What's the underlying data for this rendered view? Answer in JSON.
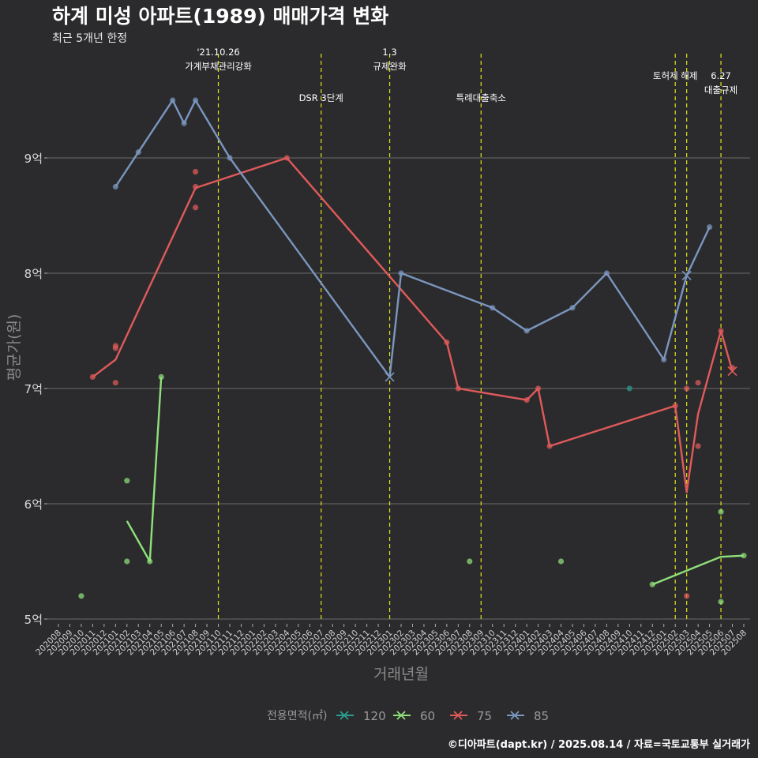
{
  "chart_data": {
    "type": "line",
    "title": "하계 미성 아파트(1989) 매매가격 변화",
    "subtitle": "최근 5개년 한정",
    "xlabel": "거래년월",
    "ylabel": "평균가(원)",
    "ylim": [
      4.9,
      9.9
    ],
    "y_ticks": [
      {
        "value": 5,
        "label": "5억"
      },
      {
        "value": 6,
        "label": "6억"
      },
      {
        "value": 7,
        "label": "7억"
      },
      {
        "value": 8,
        "label": "8억"
      },
      {
        "value": 9,
        "label": "9억"
      }
    ],
    "x_categories": [
      "202008",
      "202009",
      "202010",
      "202011",
      "202012",
      "202101",
      "202102",
      "202103",
      "202104",
      "202105",
      "202106",
      "202107",
      "202108",
      "202109",
      "202110",
      "202111",
      "202112",
      "202201",
      "202202",
      "202203",
      "202204",
      "202205",
      "202206",
      "202207",
      "202208",
      "202209",
      "202210",
      "202211",
      "202212",
      "202301",
      "202302",
      "202303",
      "202304",
      "202305",
      "202306",
      "202307",
      "202308",
      "202309",
      "202310",
      "202311",
      "202312",
      "202401",
      "202402",
      "202403",
      "202404",
      "202405",
      "202406",
      "202407",
      "202408",
      "202409",
      "202410",
      "202411",
      "202412",
      "202501",
      "202502",
      "202503",
      "202504",
      "202505",
      "202506",
      "202507",
      "202508"
    ],
    "legend_title": "전용면적(㎡)",
    "legend_position": "bottom",
    "series": [
      {
        "name": "120",
        "color": "#2a9d8f",
        "line": [],
        "points": [
          {
            "x": "202410",
            "y": 7.0
          }
        ],
        "cross": []
      },
      {
        "name": "60",
        "color": "#8fe07a",
        "line": [
          {
            "x": "202102",
            "y": 5.85
          },
          {
            "x": "202104",
            "y": 5.5
          },
          {
            "x": "202105",
            "y": 7.1
          },
          {
            "x": "202412",
            "y": 5.3
          },
          {
            "x": "202506",
            "y": 5.54
          },
          {
            "x": "202508",
            "y": 5.55
          }
        ],
        "line_breaks_after": [
          2
        ],
        "points": [
          {
            "x": "202010",
            "y": 5.2
          },
          {
            "x": "202102",
            "y": 6.2
          },
          {
            "x": "202102",
            "y": 5.5
          },
          {
            "x": "202104",
            "y": 5.5
          },
          {
            "x": "202105",
            "y": 7.1
          },
          {
            "x": "202308",
            "y": 5.5
          },
          {
            "x": "202404",
            "y": 5.5
          },
          {
            "x": "202412",
            "y": 5.3
          },
          {
            "x": "202506",
            "y": 5.93
          },
          {
            "x": "202506",
            "y": 5.15
          },
          {
            "x": "202508",
            "y": 5.55
          }
        ],
        "cross": []
      },
      {
        "name": "75",
        "color": "#e05a5a",
        "line": [
          {
            "x": "202011",
            "y": 7.1
          },
          {
            "x": "202101",
            "y": 7.25
          },
          {
            "x": "202108",
            "y": 8.74
          },
          {
            "x": "202204",
            "y": 9.0
          },
          {
            "x": "202306",
            "y": 7.4
          },
          {
            "x": "202307",
            "y": 7.0
          },
          {
            "x": "202401",
            "y": 6.9
          },
          {
            "x": "202402",
            "y": 7.0
          },
          {
            "x": "202403",
            "y": 6.5
          },
          {
            "x": "202502",
            "y": 6.85
          },
          {
            "x": "202503",
            "y": 6.1
          },
          {
            "x": "202504",
            "y": 6.78
          },
          {
            "x": "202506",
            "y": 7.5
          },
          {
            "x": "202507",
            "y": 7.15
          }
        ],
        "line_breaks_after": [],
        "points": [
          {
            "x": "202011",
            "y": 7.1
          },
          {
            "x": "202101",
            "y": 7.37
          },
          {
            "x": "202101",
            "y": 7.35
          },
          {
            "x": "202101",
            "y": 7.05
          },
          {
            "x": "202108",
            "y": 8.88
          },
          {
            "x": "202108",
            "y": 8.75
          },
          {
            "x": "202108",
            "y": 8.57
          },
          {
            "x": "202204",
            "y": 9.0
          },
          {
            "x": "202306",
            "y": 7.4
          },
          {
            "x": "202307",
            "y": 7.0
          },
          {
            "x": "202401",
            "y": 6.9
          },
          {
            "x": "202402",
            "y": 7.0
          },
          {
            "x": "202403",
            "y": 6.5
          },
          {
            "x": "202502",
            "y": 6.85
          },
          {
            "x": "202503",
            "y": 7.0
          },
          {
            "x": "202503",
            "y": 5.2
          },
          {
            "x": "202504",
            "y": 7.05
          },
          {
            "x": "202504",
            "y": 6.5
          },
          {
            "x": "202506",
            "y": 7.5
          },
          {
            "x": "202507",
            "y": 7.18
          }
        ],
        "cross": [
          {
            "x": "202507",
            "y": 7.15
          }
        ]
      },
      {
        "name": "85",
        "color": "#7b96bf",
        "line": [
          {
            "x": "202101",
            "y": 8.75
          },
          {
            "x": "202103",
            "y": 9.05
          },
          {
            "x": "202106",
            "y": 9.5
          },
          {
            "x": "202107",
            "y": 9.3
          },
          {
            "x": "202108",
            "y": 9.5
          },
          {
            "x": "202111",
            "y": 9.0
          },
          {
            "x": "202301",
            "y": 7.1
          },
          {
            "x": "202302",
            "y": 8.0
          },
          {
            "x": "202310",
            "y": 7.7
          },
          {
            "x": "202401",
            "y": 7.5
          },
          {
            "x": "202405",
            "y": 7.7
          },
          {
            "x": "202408",
            "y": 8.0
          },
          {
            "x": "202501",
            "y": 7.25
          },
          {
            "x": "202503",
            "y": 7.98
          },
          {
            "x": "202505",
            "y": 8.4
          }
        ],
        "line_breaks_after": [],
        "points": [
          {
            "x": "202101",
            "y": 8.75
          },
          {
            "x": "202103",
            "y": 9.05
          },
          {
            "x": "202106",
            "y": 9.5
          },
          {
            "x": "202107",
            "y": 9.3
          },
          {
            "x": "202108",
            "y": 9.5
          },
          {
            "x": "202111",
            "y": 9.0
          },
          {
            "x": "202302",
            "y": 8.0
          },
          {
            "x": "202310",
            "y": 7.7
          },
          {
            "x": "202401",
            "y": 7.5
          },
          {
            "x": "202405",
            "y": 7.7
          },
          {
            "x": "202408",
            "y": 8.0
          },
          {
            "x": "202501",
            "y": 7.25
          },
          {
            "x": "202505",
            "y": 8.4
          }
        ],
        "cross": [
          {
            "x": "202301",
            "y": 7.1
          },
          {
            "x": "202503",
            "y": 7.98
          }
        ]
      }
    ],
    "annotations": [
      {
        "x": "202110",
        "lines": [
          "'21.10.26",
          "가계부채관리강화"
        ]
      },
      {
        "x": "202207",
        "lines": [
          "DSR 3단계"
        ]
      },
      {
        "x": "202301",
        "lines": [
          "1.3",
          "규제완화"
        ]
      },
      {
        "x": "202309",
        "lines": [
          "특례대출축소"
        ]
      },
      {
        "x": "202502",
        "lines": [
          "토허제 해제"
        ]
      },
      {
        "x": "202503",
        "lines": []
      },
      {
        "x": "202506",
        "lines": [
          "6.27",
          "대출규제"
        ]
      }
    ],
    "caption": "©디아파트(dapt.kr) / 2025.08.14 / 자료=국토교통부 실거래가"
  }
}
